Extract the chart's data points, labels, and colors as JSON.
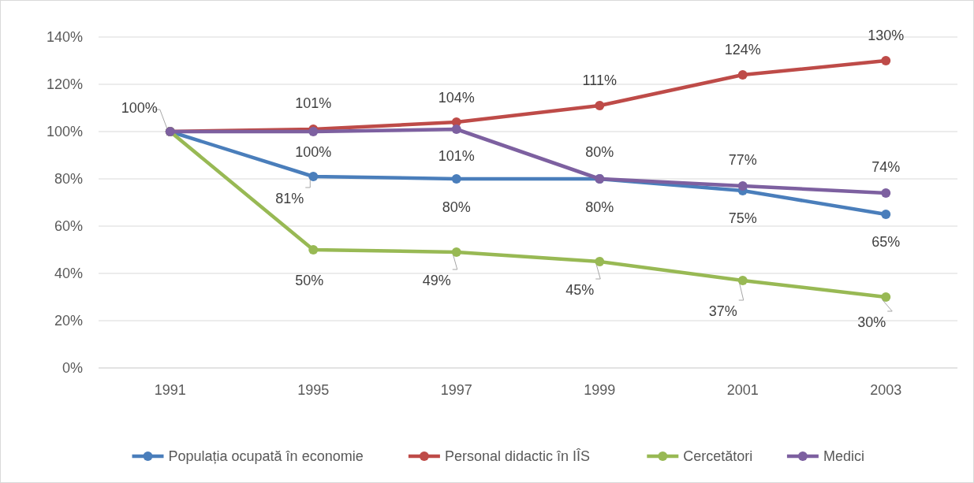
{
  "chart_data": {
    "type": "line",
    "categories": [
      "1991",
      "1995",
      "1997",
      "1999",
      "2001",
      "2003"
    ],
    "ylim": [
      0,
      140
    ],
    "yticks": [
      {
        "value": 0,
        "label": "0%"
      },
      {
        "value": 20,
        "label": "20%"
      },
      {
        "value": 40,
        "label": "40%"
      },
      {
        "value": 60,
        "label": "60%"
      },
      {
        "value": 80,
        "label": "80%"
      },
      {
        "value": 100,
        "label": "100%"
      },
      {
        "value": 120,
        "label": "120%"
      },
      {
        "value": 140,
        "label": "140%"
      }
    ],
    "grid": "y",
    "legend": "bottom",
    "marker": "circle",
    "line_style": "solid",
    "series": [
      {
        "name": "Populația ocupată în economie",
        "color": "#4a7ebb",
        "values": [
          100,
          81,
          80,
          80,
          75,
          65
        ],
        "value_labels": [
          "100%",
          "81%",
          "80%",
          "80%",
          "75%",
          "65%"
        ]
      },
      {
        "name": "Personal didactic în IÎS",
        "color": "#be4b48",
        "values": [
          100,
          101,
          104,
          111,
          124,
          130
        ],
        "value_labels": [
          null,
          "101%",
          "104%",
          "111%",
          "124%",
          "130%"
        ]
      },
      {
        "name": "Cercetători",
        "color": "#98b954",
        "values": [
          100,
          50,
          49,
          45,
          37,
          30
        ],
        "value_labels": [
          null,
          "50%",
          "49%",
          "45%",
          "37%",
          "30%"
        ]
      },
      {
        "name": "Medici",
        "color": "#7d60a0",
        "values": [
          100,
          100,
          101,
          80,
          77,
          74
        ],
        "value_labels": [
          null,
          "100%",
          "101%",
          "80%",
          "77%",
          "74%"
        ]
      }
    ]
  }
}
